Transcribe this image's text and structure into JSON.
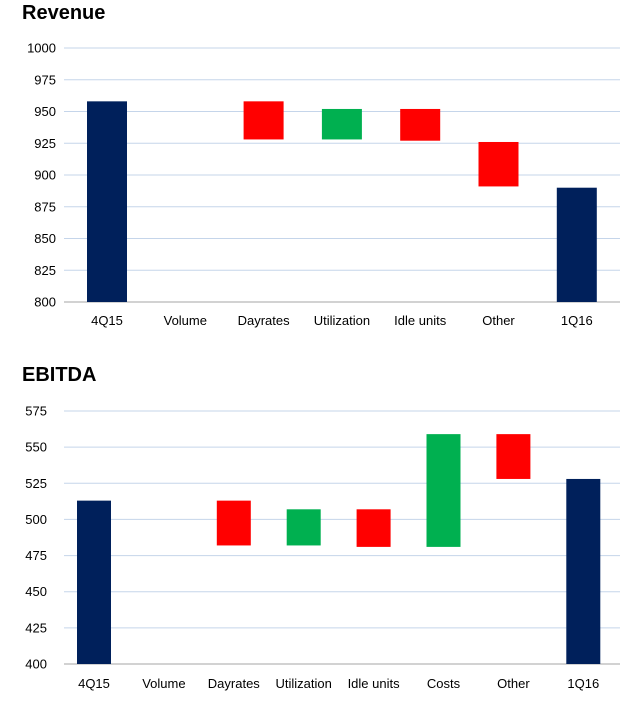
{
  "chart_data": [
    {
      "type": "waterfall",
      "title": "Revenue",
      "categories": [
        "4Q15",
        "Volume",
        "Dayrates",
        "Utilization",
        "Idle units",
        "Other",
        "1Q16"
      ],
      "ylim": [
        800,
        1000
      ],
      "yticks": [
        800,
        825,
        850,
        875,
        900,
        925,
        950,
        975,
        1000
      ],
      "grid": true,
      "bars": [
        {
          "category": "4Q15",
          "start": 800,
          "end": 958,
          "kind": "total"
        },
        {
          "category": "Volume",
          "start": 958,
          "end": 958,
          "kind": "none"
        },
        {
          "category": "Dayrates",
          "start": 958,
          "end": 928,
          "kind": "decrease"
        },
        {
          "category": "Utilization",
          "start": 928,
          "end": 952,
          "kind": "increase"
        },
        {
          "category": "Idle units",
          "start": 952,
          "end": 927,
          "kind": "decrease"
        },
        {
          "category": "Other",
          "start": 926,
          "end": 891,
          "kind": "decrease"
        },
        {
          "category": "1Q16",
          "start": 800,
          "end": 890,
          "kind": "total"
        }
      ]
    },
    {
      "type": "waterfall",
      "title": "EBITDA",
      "categories": [
        "4Q15",
        "Volume",
        "Dayrates",
        "Utilization",
        "Idle units",
        "Costs",
        "Other",
        "1Q16"
      ],
      "ylim": [
        400,
        575
      ],
      "yticks": [
        400,
        425,
        450,
        475,
        500,
        525,
        550,
        575
      ],
      "grid": true,
      "bars": [
        {
          "category": "4Q15",
          "start": 400,
          "end": 513,
          "kind": "total"
        },
        {
          "category": "Volume",
          "start": 513,
          "end": 513,
          "kind": "none"
        },
        {
          "category": "Dayrates",
          "start": 513,
          "end": 482,
          "kind": "decrease"
        },
        {
          "category": "Utilization",
          "start": 482,
          "end": 507,
          "kind": "increase"
        },
        {
          "category": "Idle units",
          "start": 507,
          "end": 481,
          "kind": "decrease"
        },
        {
          "category": "Costs",
          "start": 481,
          "end": 559,
          "kind": "increase"
        },
        {
          "category": "Other",
          "start": 559,
          "end": 528,
          "kind": "decrease"
        },
        {
          "category": "1Q16",
          "start": 400,
          "end": 528,
          "kind": "total"
        }
      ]
    }
  ],
  "colors": {
    "total": "#00205b",
    "increase": "#00b050",
    "decrease": "#ff0000",
    "grid": "#c5d5ea",
    "axis": "#a6a6a6"
  }
}
